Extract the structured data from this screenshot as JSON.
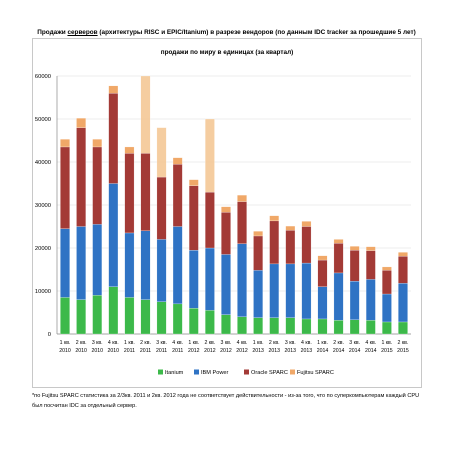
{
  "page": {
    "title_pre": "Продажи ",
    "title_link": "серверов",
    "title_post": " (архитектуры RISC и EPIC/Itanium) в разрезе вендоров (по данным IDC tracker за прошедшие 5 лет)",
    "footnote": "*по Fujitsu SPARC статистика за 2/3кв. 2011 и 2кв. 2012 года не соответствует действительности - из-за того, что по суперкомпьютерам каждый CPU был посчитан IDC за отдельный сервер."
  },
  "colors": {
    "Itanium": "#3cb94a",
    "IBM Power": "#2f73c4",
    "Oracle SPARC": "#a33a36",
    "Fujitsu SPARC": "#f0a868",
    "Fujitsu SPARC highlighted": "#f5c896",
    "grid": "#d9d9d9",
    "axis": "#888888"
  },
  "chart_data": {
    "type": "bar",
    "stacked": true,
    "title": "продажи по миру в единицах (за квартал)",
    "categories": [
      "1 кв. 2010",
      "2 кв. 2010",
      "3 кв. 2010",
      "4 кв. 2010",
      "1 кв. 2011",
      "2 кв. 2011",
      "3 кв. 2011",
      "4 кв. 2011",
      "1 кв. 2012",
      "2 кв. 2012",
      "3 кв. 2012",
      "4 кв. 2012",
      "1 кв. 2013",
      "2 кв. 2013",
      "3 кв. 2013",
      "4 кв. 2013",
      "1 кв. 2014",
      "2 кв. 2014",
      "3 кв. 2014",
      "4 кв. 2014",
      "1 кв. 2015",
      "2 кв. 2015"
    ],
    "series": [
      {
        "name": "Itanium",
        "values": [
          8500,
          8000,
          9000,
          11000,
          8500,
          8000,
          7500,
          7000,
          6000,
          5500,
          4500,
          4000,
          3800,
          3800,
          3800,
          3500,
          3500,
          3200,
          3300,
          3200,
          2800,
          2800
        ]
      },
      {
        "name": "IBM Power",
        "values": [
          16000,
          17000,
          16500,
          24000,
          15000,
          16000,
          14500,
          18000,
          13500,
          14500,
          14000,
          17000,
          11000,
          12500,
          12500,
          13000,
          7500,
          11000,
          9000,
          9500,
          6500,
          9000
        ]
      },
      {
        "name": "Oracle SPARC",
        "values": [
          19000,
          23000,
          18000,
          21000,
          18500,
          18000,
          14500,
          14500,
          15000,
          13000,
          9800,
          9800,
          8000,
          10000,
          7800,
          8500,
          6200,
          6900,
          7200,
          6700,
          5500,
          6300
        ]
      },
      {
        "name": "Fujitsu SPARC",
        "values": [
          1800,
          2200,
          1800,
          1700,
          1500,
          18000,
          11500,
          1500,
          1400,
          17000,
          1300,
          1500,
          1100,
          1200,
          1000,
          1200,
          1000,
          900,
          900,
          900,
          800,
          900
        ]
      }
    ],
    "highlighted": [
      {
        "series": "Fujitsu SPARC",
        "category": "2 кв. 2011"
      },
      {
        "series": "Fujitsu SPARC",
        "category": "3 кв. 2011"
      },
      {
        "series": "Fujitsu SPARC",
        "category": "2 кв. 2012"
      }
    ],
    "ylim": [
      0,
      60000
    ],
    "yticks": [
      0,
      10000,
      20000,
      30000,
      40000,
      50000,
      60000
    ],
    "grid": true,
    "legend": "bottom"
  }
}
